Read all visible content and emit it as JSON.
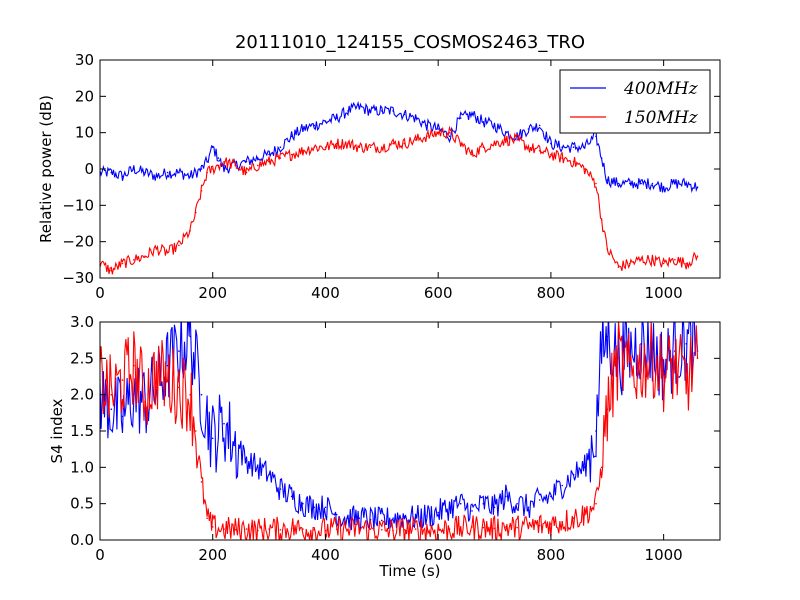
{
  "figure": {
    "title": "20111010_124155_COSMOS2463_TRO"
  },
  "colors": {
    "series_400": "#0000ff",
    "series_150": "#ff0000"
  },
  "chart_data": [
    {
      "type": "line",
      "title": "20111010_124155_COSMOS2463_TRO",
      "xlabel": "",
      "ylabel": "Relative power (dB)",
      "xlim": [
        0,
        1100
      ],
      "ylim": [
        -30,
        30
      ],
      "xticks": [
        "0",
        "200",
        "400",
        "600",
        "800",
        "1000"
      ],
      "yticks": [
        "−30",
        "−20",
        "−10",
        "0",
        "10",
        "20",
        "30"
      ],
      "legend": "top-right",
      "grid": false,
      "series": [
        {
          "name": "400MHz",
          "color": "#0000ff",
          "x": [
            0,
            20,
            40,
            60,
            80,
            100,
            120,
            140,
            160,
            180,
            190,
            200,
            210,
            220,
            240,
            260,
            280,
            300,
            320,
            340,
            360,
            380,
            400,
            420,
            440,
            460,
            480,
            500,
            520,
            540,
            560,
            580,
            600,
            620,
            640,
            660,
            680,
            700,
            720,
            740,
            760,
            780,
            800,
            820,
            840,
            860,
            880,
            890,
            900,
            920,
            940,
            960,
            980,
            1000,
            1020,
            1040,
            1060
          ],
          "y": [
            -1,
            -1,
            -2,
            0,
            -1,
            -2,
            -1,
            -1,
            -2,
            0,
            2,
            6,
            3,
            0,
            1,
            2,
            3,
            4,
            6,
            9,
            11,
            12,
            13,
            14,
            16,
            17,
            16,
            16,
            16,
            15,
            14,
            12,
            11,
            9,
            14,
            15,
            13,
            12,
            10,
            9,
            11,
            12,
            7,
            6,
            6,
            6,
            9,
            3,
            -3,
            -4,
            -4,
            -4,
            -4,
            -5,
            -4,
            -4,
            -5
          ]
        },
        {
          "name": "150MHz",
          "color": "#ff0000",
          "x": [
            0,
            20,
            40,
            60,
            80,
            100,
            120,
            140,
            160,
            170,
            180,
            190,
            200,
            210,
            220,
            240,
            260,
            280,
            300,
            320,
            340,
            360,
            380,
            400,
            420,
            440,
            460,
            480,
            500,
            520,
            540,
            560,
            580,
            600,
            620,
            640,
            660,
            680,
            700,
            720,
            740,
            760,
            780,
            800,
            820,
            840,
            860,
            880,
            890,
            900,
            920,
            940,
            960,
            980,
            1000,
            1020,
            1040,
            1060
          ],
          "y": [
            -26,
            -28,
            -26,
            -25,
            -24,
            -22,
            -23,
            -21,
            -17,
            -12,
            -6,
            -1,
            0,
            1,
            2,
            1,
            -1,
            1,
            2,
            3,
            4,
            5,
            6,
            6,
            7,
            7,
            6,
            6,
            6,
            7,
            7,
            8,
            9,
            10,
            10,
            7,
            4,
            6,
            7,
            8,
            8,
            6,
            5,
            4,
            3,
            2,
            0,
            -4,
            -14,
            -22,
            -27,
            -26,
            -25,
            -25,
            -26,
            -25,
            -26,
            -24
          ]
        }
      ]
    },
    {
      "type": "line",
      "title": "",
      "xlabel": "Time (s)",
      "ylabel": "S4 index",
      "xlim": [
        0,
        1100
      ],
      "ylim": [
        0,
        3
      ],
      "xticks": [
        "0",
        "200",
        "400",
        "600",
        "800",
        "1000"
      ],
      "yticks": [
        "0.0",
        "0.5",
        "1.0",
        "1.5",
        "2.0",
        "2.5",
        "3.0"
      ],
      "grid": false,
      "series": [
        {
          "name": "400MHz",
          "color": "#0000ff",
          "x": [
            0,
            20,
            40,
            60,
            80,
            100,
            120,
            140,
            160,
            180,
            200,
            220,
            240,
            260,
            280,
            300,
            320,
            340,
            360,
            380,
            400,
            420,
            440,
            460,
            480,
            500,
            520,
            540,
            560,
            580,
            600,
            620,
            640,
            660,
            680,
            700,
            720,
            740,
            760,
            780,
            800,
            820,
            840,
            860,
            880,
            890,
            900,
            920,
            940,
            960,
            980,
            1000,
            1020,
            1040,
            1060
          ],
          "y": [
            2.0,
            1.8,
            1.7,
            2.0,
            1.9,
            2.1,
            2.4,
            2.6,
            2.8,
            2.0,
            1.4,
            1.6,
            1.3,
            1.1,
            1.0,
            0.9,
            0.7,
            0.6,
            0.5,
            0.45,
            0.45,
            0.35,
            0.3,
            0.3,
            0.28,
            0.27,
            0.3,
            0.32,
            0.3,
            0.33,
            0.38,
            0.45,
            0.5,
            0.4,
            0.5,
            0.45,
            0.6,
            0.5,
            0.45,
            0.55,
            0.6,
            0.75,
            0.9,
            1.0,
            1.5,
            2.6,
            2.8,
            2.5,
            2.6,
            2.7,
            2.6,
            2.4,
            2.6,
            2.7,
            2.6
          ]
        },
        {
          "name": "150MHz",
          "color": "#ff0000",
          "x": [
            0,
            20,
            40,
            60,
            80,
            100,
            120,
            140,
            160,
            170,
            180,
            190,
            200,
            220,
            240,
            260,
            280,
            300,
            320,
            340,
            360,
            380,
            400,
            420,
            440,
            460,
            480,
            500,
            520,
            540,
            560,
            580,
            600,
            620,
            640,
            660,
            680,
            700,
            720,
            740,
            760,
            780,
            800,
            820,
            840,
            860,
            880,
            890,
            900,
            920,
            940,
            960,
            980,
            1000,
            1020,
            1040,
            1060
          ],
          "y": [
            2.2,
            2.0,
            2.2,
            2.4,
            2.0,
            2.3,
            2.2,
            2.1,
            2.0,
            1.5,
            0.8,
            0.3,
            0.18,
            0.15,
            0.14,
            0.15,
            0.13,
            0.15,
            0.14,
            0.16,
            0.15,
            0.14,
            0.13,
            0.15,
            0.14,
            0.16,
            0.15,
            0.14,
            0.13,
            0.14,
            0.15,
            0.14,
            0.14,
            0.15,
            0.16,
            0.18,
            0.17,
            0.16,
            0.18,
            0.17,
            0.18,
            0.2,
            0.22,
            0.25,
            0.3,
            0.35,
            0.5,
            1.0,
            1.8,
            2.5,
            2.3,
            2.4,
            2.5,
            2.3,
            2.4,
            2.2,
            2.5
          ]
        }
      ]
    }
  ]
}
